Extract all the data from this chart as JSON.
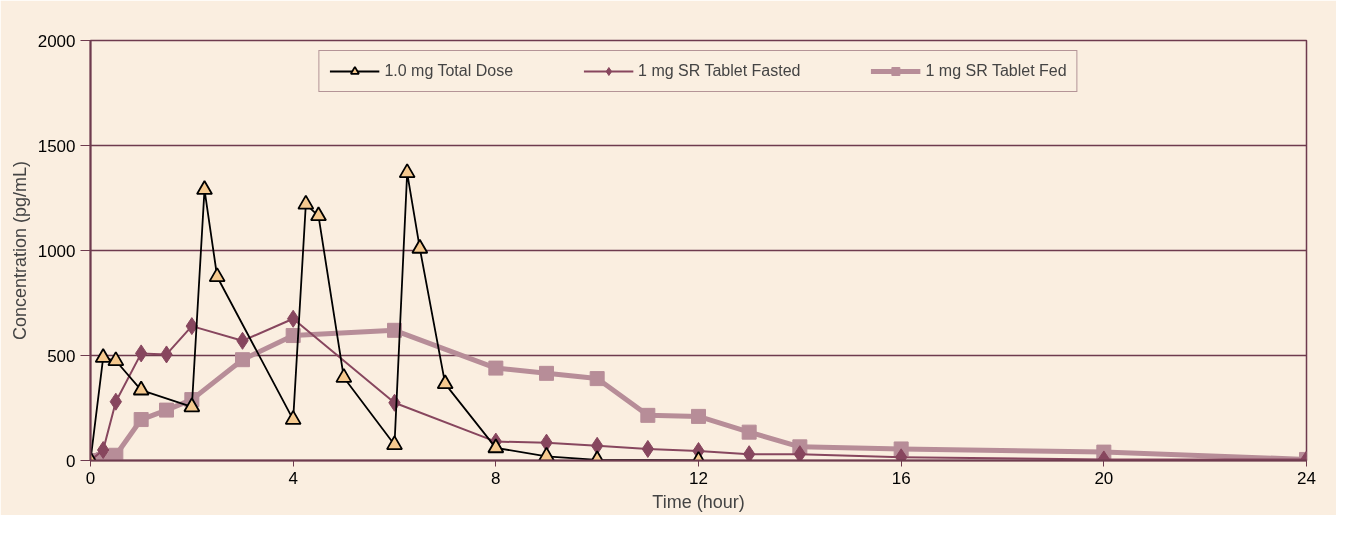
{
  "chart_data": {
    "type": "line",
    "xlabel": "Time (hour)",
    "ylabel": "Concentration (pg/mL)",
    "xlim": [
      0,
      24
    ],
    "ylim": [
      0,
      2000
    ],
    "xticks": [
      0,
      4,
      8,
      12,
      16,
      20,
      24
    ],
    "yticks": [
      0,
      500,
      1000,
      1500,
      2000
    ],
    "grid": "y",
    "legend": "top",
    "series": [
      {
        "name": "1.0 mg Total Dose",
        "color": "#000000",
        "marker": "triangle",
        "x": [
          0,
          0.25,
          0.5,
          1,
          2,
          2.25,
          2.5,
          4,
          4.25,
          4.5,
          5,
          6,
          6.25,
          6.5,
          7,
          8,
          9,
          10,
          12
        ],
        "values": [
          0,
          490,
          475,
          335,
          255,
          1290,
          875,
          195,
          1220,
          1165,
          395,
          75,
          1370,
          1010,
          365,
          60,
          20,
          3,
          0
        ]
      },
      {
        "name": "1 mg SR Tablet Fasted",
        "color": "#87465e",
        "marker": "diamond",
        "x": [
          0,
          0.25,
          0.5,
          1,
          1.5,
          2,
          3,
          4,
          6,
          8,
          9,
          10,
          11,
          12,
          13,
          14,
          16,
          20,
          24
        ],
        "values": [
          0,
          50,
          280,
          510,
          505,
          640,
          570,
          675,
          275,
          90,
          85,
          70,
          55,
          45,
          30,
          30,
          15,
          5,
          5
        ]
      },
      {
        "name": "1 mg SR Tablet Fed",
        "color": "#b78d98",
        "marker": "square",
        "x": [
          0,
          0.25,
          0.5,
          1,
          1.5,
          2,
          3,
          4,
          6,
          8,
          9,
          10,
          11,
          12,
          13,
          14,
          16,
          20,
          24
        ],
        "values": [
          0,
          5,
          25,
          195,
          240,
          290,
          480,
          595,
          620,
          440,
          415,
          390,
          215,
          210,
          135,
          65,
          55,
          40,
          5
        ]
      }
    ]
  }
}
